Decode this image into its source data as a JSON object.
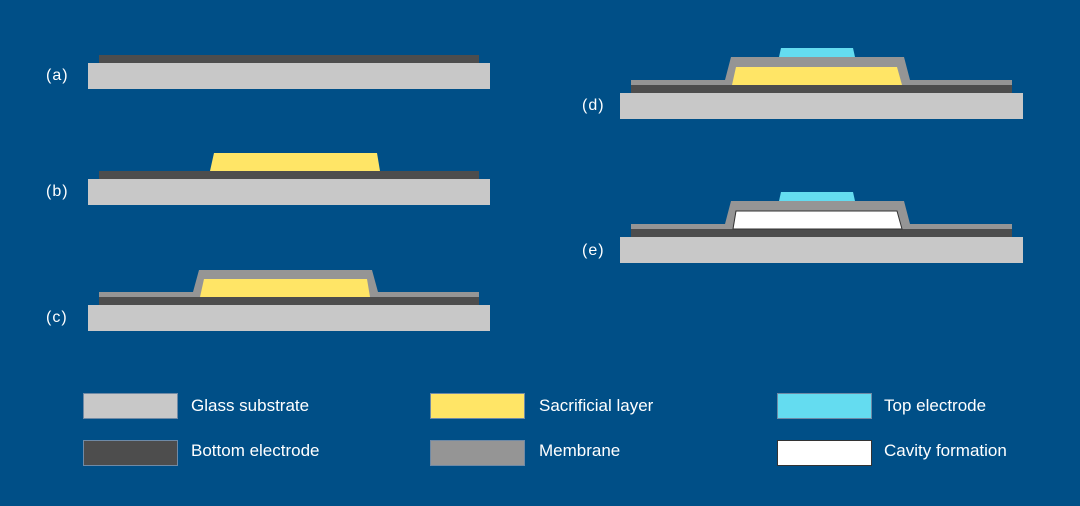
{
  "colors": {
    "background": "#004f87",
    "glass_substrate": "#c8c8c8",
    "bottom_electrode": "#4d4d4d",
    "sacrificial_layer": "#ffe566",
    "membrane": "#959595",
    "top_electrode": "#64dcf0",
    "cavity": "#ffffff"
  },
  "steps": [
    "(a)",
    "(b)",
    "(c)",
    "(d)",
    "(e)"
  ],
  "legend": [
    {
      "label": "Glass substrate",
      "color_key": "glass_substrate"
    },
    {
      "label": "Sacrificial layer",
      "color_key": "sacrificial_layer"
    },
    {
      "label": "Top electrode",
      "color_key": "top_electrode"
    },
    {
      "label": "Bottom electrode",
      "color_key": "bottom_electrode"
    },
    {
      "label": "Membrane",
      "color_key": "membrane"
    },
    {
      "label": "Cavity formation",
      "color_key": "cavity"
    }
  ]
}
